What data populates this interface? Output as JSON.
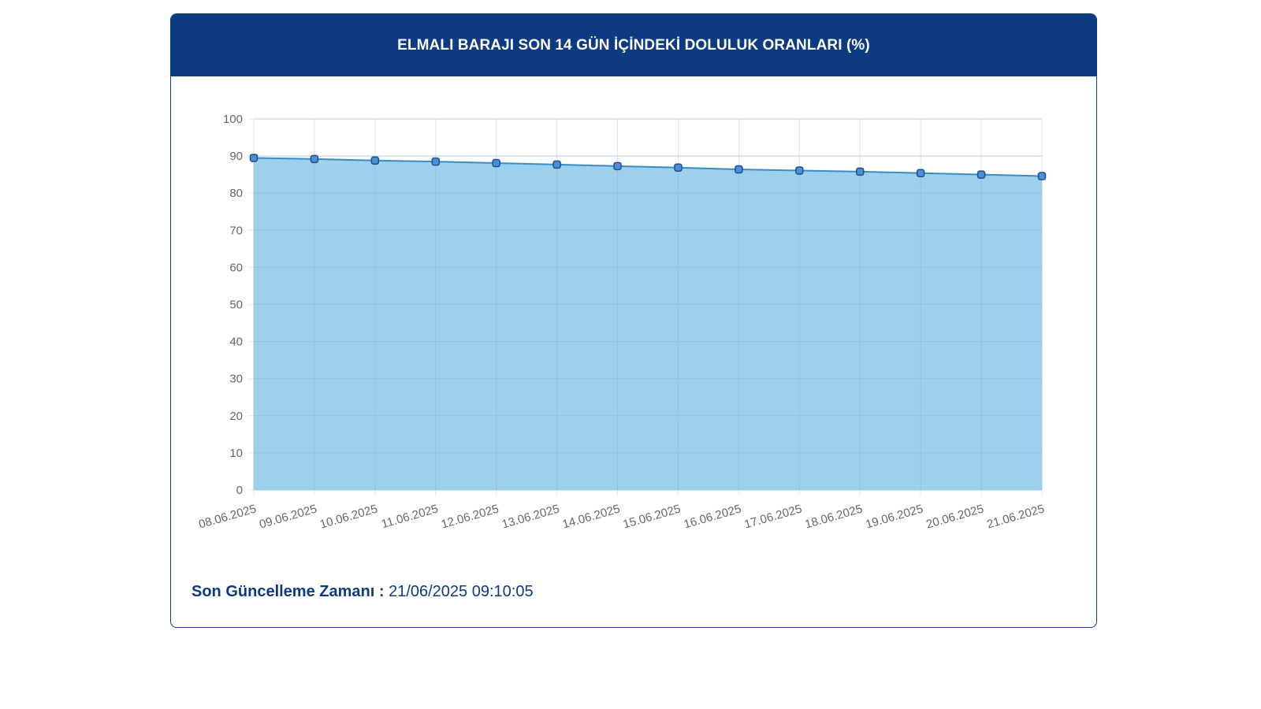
{
  "header": {
    "title": "ELMALI BARAJI SON 14 GÜN İÇİNDEKİ DOLULUK ORANLARI (%)"
  },
  "footer": {
    "label": "Son Güncelleme Zamanı :",
    "value": "21/06/2025 09:10:05"
  },
  "colors": {
    "header_bg": "#0e3a82",
    "area_fill": "#9dd0ec",
    "line": "#3a8cc4",
    "point_fill": "#4a90d9",
    "point_stroke": "#1f4f8a",
    "grid": "#e6e6e6"
  },
  "chart_data": {
    "type": "area",
    "title": "ELMALI BARAJI SON 14 GÜN İÇİNDEKİ DOLULUK ORANLARI (%)",
    "categories": [
      "08.06.2025",
      "09.06.2025",
      "10.06.2025",
      "11.06.2025",
      "12.06.2025",
      "13.06.2025",
      "14.06.2025",
      "15.06.2025",
      "16.06.2025",
      "17.06.2025",
      "18.06.2025",
      "19.06.2025",
      "20.06.2025",
      "21.06.2025"
    ],
    "values": [
      89.5,
      89.2,
      88.8,
      88.5,
      88.1,
      87.7,
      87.3,
      86.9,
      86.4,
      86.1,
      85.8,
      85.4,
      85.0,
      84.6
    ],
    "ylim": [
      0,
      100
    ],
    "yticks": [
      0,
      10,
      20,
      30,
      40,
      50,
      60,
      70,
      80,
      90,
      100
    ],
    "xlabel": "",
    "ylabel": "",
    "grid": true,
    "legend": "none"
  }
}
